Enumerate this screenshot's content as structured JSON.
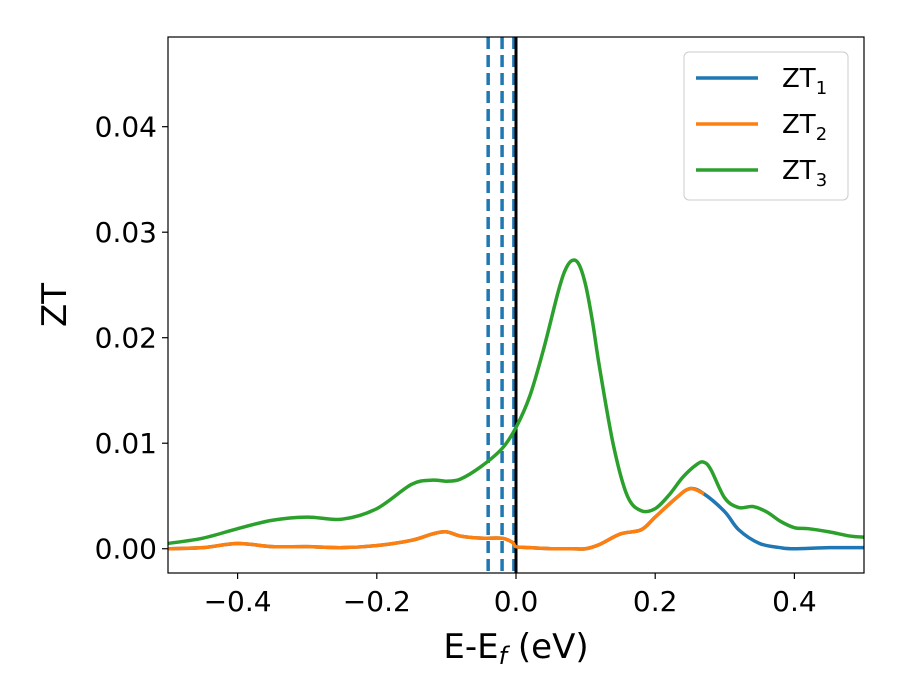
{
  "chart_data": {
    "type": "line",
    "title": "",
    "xlabel": "E-E",
    "xlabel_sub": "f",
    "xlabel_unit": " (eV)",
    "ylabel": "ZT",
    "xlim": [
      -0.5,
      0.5
    ],
    "ylim": [
      -0.0023,
      0.0485
    ],
    "xticks": [
      -0.4,
      -0.2,
      0.0,
      0.2,
      0.4
    ],
    "xtick_labels": [
      "−0.4",
      "−0.2",
      "0.0",
      "0.2",
      "0.4"
    ],
    "yticks": [
      0.0,
      0.01,
      0.02,
      0.03,
      0.04
    ],
    "ytick_labels": [
      "0.00",
      "0.01",
      "0.02",
      "0.03",
      "0.04"
    ],
    "grid": false,
    "legend_position": "top-right",
    "vlines": [
      {
        "x": -0.04,
        "style": "dashed",
        "color": "#1f77b4"
      },
      {
        "x": -0.02,
        "style": "dashed",
        "color": "#1f77b4"
      },
      {
        "x": -0.003,
        "style": "dashed",
        "color": "#1f77b4"
      },
      {
        "x": 0.0,
        "style": "solid",
        "color": "#000000"
      }
    ],
    "series": [
      {
        "name": "ZT",
        "name_sub": "1",
        "color": "#1f77b4",
        "x": [
          -0.5,
          -0.45,
          -0.4,
          -0.35,
          -0.3,
          -0.25,
          -0.2,
          -0.15,
          -0.12,
          -0.1,
          -0.08,
          -0.05,
          -0.02,
          -0.005,
          0.0,
          0.02,
          0.05,
          0.08,
          0.1,
          0.12,
          0.15,
          0.18,
          0.2,
          0.23,
          0.25,
          0.27,
          0.3,
          0.32,
          0.35,
          0.38,
          0.4,
          0.45,
          0.5
        ],
        "y": [
          0.0,
          0.0001,
          0.0005,
          0.0002,
          0.0002,
          0.0001,
          0.0003,
          0.0008,
          0.0014,
          0.0016,
          0.0012,
          0.001,
          0.001,
          0.0006,
          0.0002,
          0.0001,
          0.0,
          0.0,
          0.0,
          0.0004,
          0.0014,
          0.0018,
          0.003,
          0.0048,
          0.0057,
          0.0052,
          0.0035,
          0.0018,
          0.0005,
          0.0001,
          0.0,
          0.0001,
          0.0001
        ]
      },
      {
        "name": "ZT",
        "name_sub": "2",
        "color": "#ff7f0e",
        "x": [
          -0.5,
          -0.45,
          -0.4,
          -0.35,
          -0.3,
          -0.25,
          -0.2,
          -0.15,
          -0.12,
          -0.1,
          -0.08,
          -0.05,
          -0.02,
          -0.005,
          0.0,
          0.02,
          0.05,
          0.08,
          0.1,
          0.12,
          0.15,
          0.18,
          0.2,
          0.23,
          0.25,
          0.27
        ],
        "y": [
          0.0,
          0.0001,
          0.0005,
          0.0002,
          0.0002,
          0.0001,
          0.0003,
          0.0008,
          0.0014,
          0.0016,
          0.0012,
          0.001,
          0.001,
          0.0006,
          0.0002,
          0.0001,
          0.0,
          0.0,
          0.0,
          0.0004,
          0.0014,
          0.0018,
          0.003,
          0.0048,
          0.0057,
          0.0052
        ]
      },
      {
        "name": "ZT",
        "name_sub": "3",
        "color": "#2ca02c",
        "x": [
          -0.5,
          -0.45,
          -0.4,
          -0.35,
          -0.3,
          -0.25,
          -0.2,
          -0.15,
          -0.12,
          -0.1,
          -0.08,
          -0.05,
          -0.02,
          0.0,
          0.02,
          0.04,
          0.06,
          0.07,
          0.08,
          0.09,
          0.1,
          0.11,
          0.12,
          0.14,
          0.16,
          0.18,
          0.2,
          0.22,
          0.24,
          0.26,
          0.27,
          0.28,
          0.3,
          0.32,
          0.34,
          0.36,
          0.38,
          0.4,
          0.42,
          0.45,
          0.48,
          0.5
        ],
        "y": [
          0.0005,
          0.001,
          0.0019,
          0.0027,
          0.003,
          0.0028,
          0.0038,
          0.0061,
          0.0065,
          0.0064,
          0.0066,
          0.0078,
          0.0095,
          0.0115,
          0.0145,
          0.019,
          0.0242,
          0.0263,
          0.0273,
          0.027,
          0.025,
          0.0215,
          0.0172,
          0.0098,
          0.005,
          0.0036,
          0.0038,
          0.0051,
          0.0068,
          0.008,
          0.0082,
          0.0075,
          0.0048,
          0.0039,
          0.004,
          0.0035,
          0.0026,
          0.002,
          0.0019,
          0.0016,
          0.0012,
          0.0011
        ]
      }
    ]
  }
}
